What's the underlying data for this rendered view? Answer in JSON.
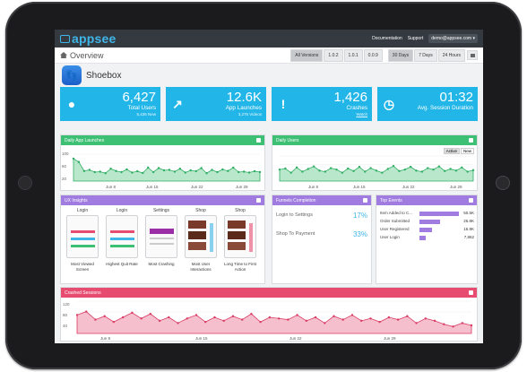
{
  "topbar": {
    "brand": "appsee",
    "documentation": "Documentation",
    "support": "Support",
    "user": "demo@appsee.com ▾"
  },
  "overview": {
    "title": "Overview",
    "versions": [
      "All Versions",
      "1.0.2",
      "1.0.1",
      "0.0.9"
    ],
    "ranges": [
      "30 Days",
      "7 Days",
      "24 Hours"
    ]
  },
  "app": {
    "name": "Shoebox"
  },
  "stats": [
    {
      "icon": "user-icon",
      "value": "6,427",
      "label": "Total Users",
      "sub": "5,436 New"
    },
    {
      "icon": "arrow-icon",
      "value": "12.6K",
      "label": "App Launches",
      "sub": "3,276 Videos"
    },
    {
      "icon": "alert-icon",
      "value": "1,426",
      "label": "Crashes",
      "sub": "Watch"
    },
    {
      "icon": "clock-icon",
      "value": "01:32",
      "label": "Avg. Session Duration",
      "sub": ""
    }
  ],
  "launches": {
    "title": "Daily App Launches",
    "ticks": [
      "Jun 8",
      "Jun 15",
      "Jun 22",
      "Jun 29"
    ],
    "ylabels": [
      "100",
      "60",
      "20"
    ]
  },
  "users": {
    "title": "Daily Users",
    "toggle": [
      "Active",
      "New"
    ],
    "ticks": [
      "Jun 8",
      "Jun 15",
      "Jun 22",
      "Jun 29"
    ]
  },
  "ux": {
    "title": "UX Insights",
    "shots": [
      {
        "title": "Login",
        "caption": "Most Viewed Screen"
      },
      {
        "title": "Login",
        "caption": "Highest Quit Rate"
      },
      {
        "title": "Settings",
        "caption": "Most Crashing"
      },
      {
        "title": "Shop",
        "caption": "Most User Interactions"
      },
      {
        "title": "Shop",
        "caption": "Long Time to First Action"
      }
    ]
  },
  "funnels": {
    "title": "Funnels Completion",
    "items": [
      {
        "label": "Login to Settings",
        "value": "17%"
      },
      {
        "label": "Shop To Payment",
        "value": "33%"
      }
    ]
  },
  "events": {
    "title": "Top Events",
    "items": [
      {
        "label": "Item Added to C...",
        "value": "50.5K",
        "frac": 1.0
      },
      {
        "label": "Order Submitted",
        "value": "26.8K",
        "frac": 0.53
      },
      {
        "label": "User Registered",
        "value": "15.9K",
        "frac": 0.31
      },
      {
        "label": "User Login",
        "value": "7,862",
        "frac": 0.16
      }
    ]
  },
  "crashed": {
    "title": "Crashed Sessions",
    "ylabels": [
      "120",
      "80",
      "40"
    ],
    "ticks": [
      "Jun 8",
      "Jun 15",
      "Jun 22",
      "Jun 29"
    ]
  },
  "chart_data": [
    {
      "type": "area",
      "title": "Daily App Launches",
      "ylim": [
        0,
        120
      ],
      "values": [
        100,
        85,
        45,
        50,
        40,
        42,
        35,
        55,
        45,
        40,
        52,
        38,
        44,
        36,
        60,
        40,
        58,
        48,
        50,
        42,
        55,
        38,
        48,
        44,
        58,
        35,
        50,
        40,
        52,
        45,
        60,
        40,
        42,
        38,
        44,
        40
      ]
    },
    {
      "type": "area",
      "title": "Daily Users",
      "ylim": [
        0,
        120
      ],
      "values": [
        55,
        60,
        40,
        65,
        45,
        58,
        70,
        50,
        45,
        62,
        55,
        40,
        60,
        48,
        68,
        45,
        62,
        50,
        40,
        58,
        72,
        48,
        55,
        68,
        50,
        45,
        62,
        55,
        70,
        48,
        58,
        50,
        65,
        45,
        52
      ]
    },
    {
      "type": "area",
      "title": "Crashed Sessions",
      "ylim": [
        0,
        140
      ],
      "values": [
        80,
        95,
        60,
        75,
        50,
        70,
        90,
        65,
        85,
        55,
        70,
        45,
        65,
        80,
        50,
        70,
        55,
        75,
        60,
        85,
        50,
        70,
        65,
        60,
        80,
        55,
        70,
        45,
        75,
        60,
        80,
        55,
        65,
        50,
        70,
        60,
        75,
        45,
        65,
        55,
        40,
        30,
        45,
        35
      ]
    }
  ]
}
